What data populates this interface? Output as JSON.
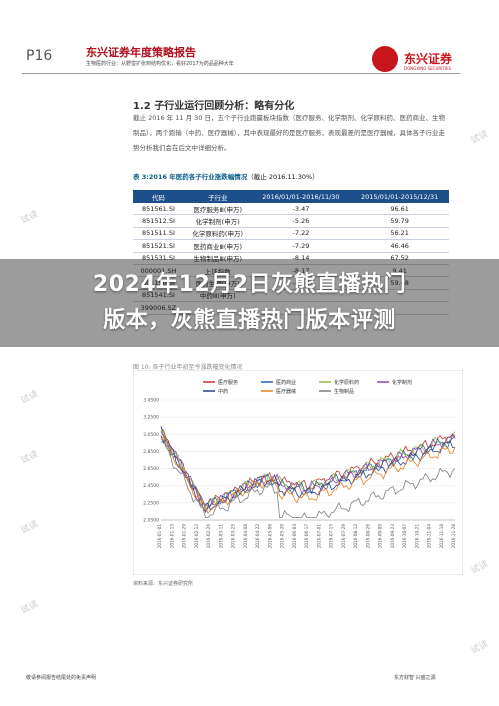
{
  "header": {
    "page": "P16",
    "report_title": "东兴证券年度策略报告",
    "report_subtitle": "生物医药行业：从野蛮扩张到结构优化，看好2017为药品品种大年",
    "logo_text": "东兴证券",
    "logo_en": "DONGXING SECURITIES"
  },
  "section": {
    "title": "1.2 子行业运行回顾分析：略有分化",
    "paragraph": "截止 2016 年 11 月 30 日，五个子行业跑赢板块指数（医疗服务、化学制剂、化学原料药、医药商业、生物制品），两个跑输（中药、医疗器械），其中表现最好的是医疗服务，表现最差的是医疗器械，具体各子行业走势分析我们会在后文中详细分析。"
  },
  "table": {
    "title_prefix": "表 3:",
    "title": "2016 年医药各子行业涨跌幅情况",
    "title_suffix": "（截止 2016.11.30%）",
    "headers": [
      "代码",
      "子行业",
      "2016/01/01-2016/11/30",
      "2015/01/01-2015/12/31"
    ],
    "rows": [
      [
        "851561.SI",
        "医疗服务Ⅲ(申万)",
        "-3.47",
        "96.61"
      ],
      [
        "851512.SI",
        "化学制剂(申万)",
        "-5.26",
        "59.79"
      ],
      [
        "851511.SI",
        "化学原料药(申万)",
        "-7.22",
        "56.21"
      ],
      [
        "851521.SI",
        "医药商业Ⅲ(申万)",
        "-7.29",
        "46.46"
      ],
      [
        "851531.SI",
        "生物制品Ⅲ(申万)",
        "-8.14",
        "67.52"
      ],
      [
        "000001.SH",
        "上证指数",
        "-8.17",
        "9.41"
      ],
      [
        "801150.SI",
        "医药生物(申万)",
        "-8.23",
        "59.68"
      ],
      [
        "851541.SI",
        "中药Ⅲ(申万)",
        "",
        ""
      ],
      [
        "399006.SZ",
        "",
        "",
        ""
      ]
    ]
  },
  "banner": {
    "line1": "2024年12月2日灰熊直播热门",
    "line2": "版本，灰熊直播热门版本评测"
  },
  "chart": {
    "title": "图 10: 各子行业年初至今涨跌幅变化情况",
    "source": "资料来源：东兴证券研究所",
    "legend": [
      "医疗服务",
      "医药商业",
      "化学原料药",
      "化学制剂",
      "中药",
      "医疗器械",
      "生物制品"
    ],
    "legend_colors": [
      "#c0392b",
      "#1f5fa8",
      "#8fbf3f",
      "#8e44ad",
      "#2c3e90",
      "#e67e22",
      "#7f7f7f"
    ],
    "yticks": [
      "3.4500",
      "3.2500",
      "3.0500",
      "2.8500",
      "2.6500",
      "2.4500",
      "2.2500",
      "2.0500"
    ],
    "xticks": [
      "2016-01-01",
      "2016-01-15",
      "2016-01-29",
      "2016-02-12",
      "2016-02-26",
      "2016-03-11",
      "2016-03-25",
      "2016-04-08",
      "2016-04-22",
      "2016-05-06",
      "2016-05-20",
      "2016-06-03",
      "2016-06-17",
      "2016-07-01",
      "2016-07-15",
      "2016-07-29",
      "2016-08-12",
      "2016-08-26",
      "2016-09-09",
      "2016-09-23",
      "2016-10-07",
      "2016-10-21",
      "2016-11-04",
      "2016-11-18",
      "2016-11-28"
    ]
  },
  "footer": {
    "left": "敬请参阅报告结尾处的免责声明",
    "right": "东方财智 兴盛之源"
  },
  "watermark": "试读"
}
